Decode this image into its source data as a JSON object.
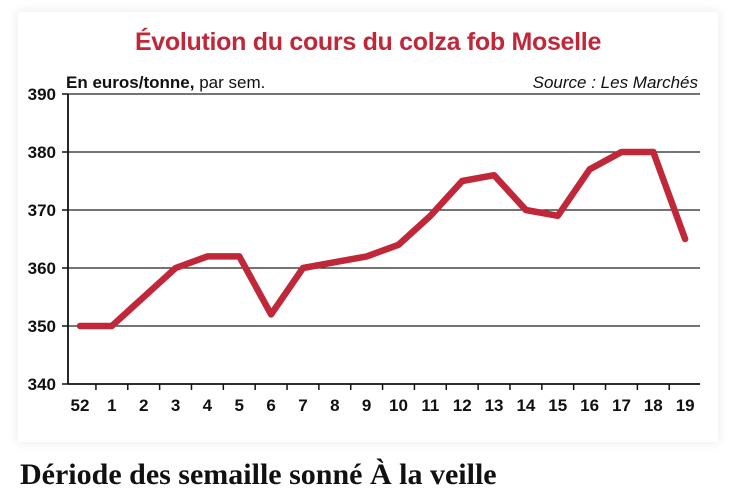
{
  "chart_data": {
    "type": "line",
    "title": "Évolution du cours du colza fob Moselle",
    "unit_label_bold": "En euros/tonne,",
    "unit_label_rest": " par sem.",
    "source": "Source : Les Marchés",
    "categories": [
      "52",
      "1",
      "2",
      "3",
      "4",
      "5",
      "6",
      "7",
      "8",
      "9",
      "10",
      "11",
      "12",
      "13",
      "14",
      "15",
      "16",
      "17",
      "18",
      "19"
    ],
    "series": [
      {
        "values": [
          350,
          350,
          355,
          360,
          362,
          362,
          352,
          360,
          361,
          362,
          364,
          369,
          375,
          376,
          370,
          369,
          377,
          380,
          380,
          365
        ]
      }
    ],
    "ylim": [
      340,
      390
    ],
    "yticks": [
      340,
      350,
      360,
      370,
      380,
      390
    ],
    "grid": true,
    "line_color": "#c0283a"
  },
  "bottom_text": "Dériode des semaille sonné   À la veille"
}
